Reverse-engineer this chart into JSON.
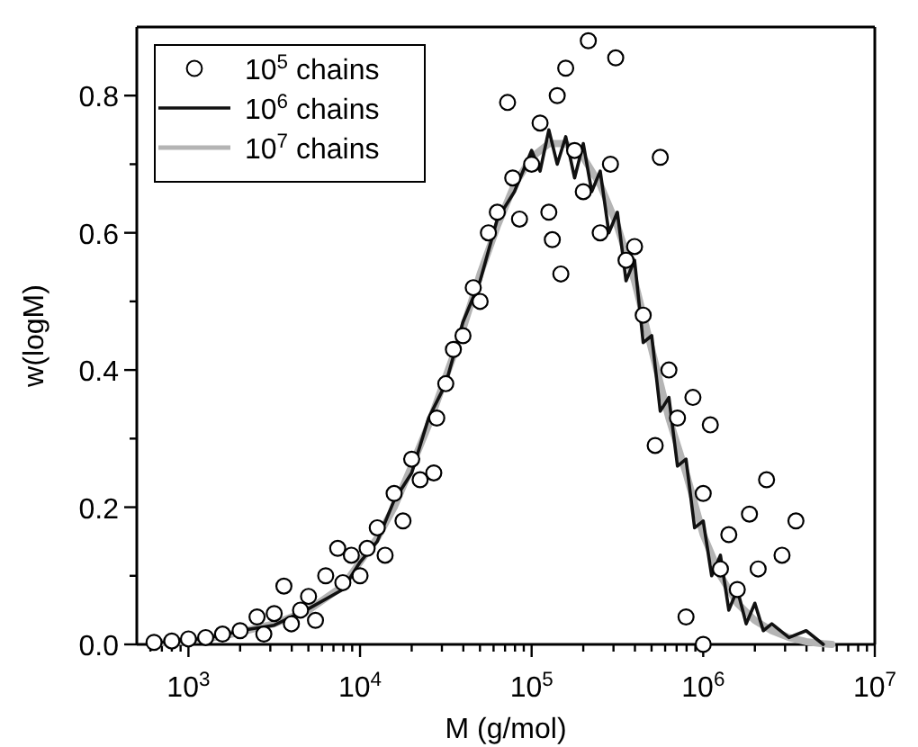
{
  "chart_data": {
    "type": "line",
    "xlabel": "M (g/mol)",
    "ylabel": "w(logM)",
    "log": "x",
    "xlim": [
      500,
      10000000
    ],
    "ylim": [
      0,
      0.9
    ],
    "xticks": [
      {
        "value": 1000,
        "label": "10$^{3}$"
      },
      {
        "value": 10000,
        "label": "10$^{4}$"
      },
      {
        "value": 100000,
        "label": "10$^{5}$"
      },
      {
        "value": 1000000,
        "label": "10$^{6}$"
      },
      {
        "value": 10000000,
        "label": "10$^{7}$"
      },
      {
        "value": 600,
        "label": null
      },
      {
        "value": 700,
        "label": null
      },
      {
        "value": 800,
        "label": null
      },
      {
        "value": 900,
        "label": null
      },
      {
        "value": 2000,
        "label": null
      },
      {
        "value": 3000,
        "label": null
      },
      {
        "value": 4000,
        "label": null
      },
      {
        "value": 5000,
        "label": null
      },
      {
        "value": 6000,
        "label": null
      },
      {
        "value": 7000,
        "label": null
      },
      {
        "value": 8000,
        "label": null
      },
      {
        "value": 9000,
        "label": null
      },
      {
        "value": 20000,
        "label": null
      },
      {
        "value": 30000,
        "label": null
      },
      {
        "value": 40000,
        "label": null
      },
      {
        "value": 50000,
        "label": null
      },
      {
        "value": 60000,
        "label": null
      },
      {
        "value": 70000,
        "label": null
      },
      {
        "value": 80000,
        "label": null
      },
      {
        "value": 90000,
        "label": null
      },
      {
        "value": 200000,
        "label": null
      },
      {
        "value": 300000,
        "label": null
      },
      {
        "value": 400000,
        "label": null
      },
      {
        "value": 500000,
        "label": null
      },
      {
        "value": 600000,
        "label": null
      },
      {
        "value": 700000,
        "label": null
      },
      {
        "value": 800000,
        "label": null
      },
      {
        "value": 900000,
        "label": null
      },
      {
        "value": 2000000,
        "label": null
      },
      {
        "value": 3000000,
        "label": null
      },
      {
        "value": 4000000,
        "label": null
      },
      {
        "value": 5000000,
        "label": null
      },
      {
        "value": 6000000,
        "label": null
      },
      {
        "value": 7000000,
        "label": null
      },
      {
        "value": 8000000,
        "label": null
      },
      {
        "value": 9000000,
        "label": null
      }
    ],
    "yticks": [
      {
        "value": 0,
        "label": "0.0"
      },
      0.2,
      0.4,
      0.6,
      0.8,
      {
        "value": 0.1,
        "label": null
      },
      {
        "value": 0.3,
        "label": null
      },
      {
        "value": 0.5,
        "label": null
      },
      {
        "value": 0.7,
        "label": null
      }
    ],
    "grid": false,
    "legend": "top left",
    "series": [
      {
        "name": "10$^{7}$ chains",
        "color": "#b4b4b4",
        "line_style": "solid",
        "x": [
          600,
          1000,
          1580,
          2000,
          3160,
          5010,
          7940,
          10000,
          12600,
          15800,
          20000,
          25100,
          31600,
          39800,
          50100,
          63100,
          79400,
          100000,
          126000,
          158000,
          200000,
          251000,
          316000,
          398000,
          501000,
          631000,
          794000,
          1000000,
          1260000,
          1580000,
          2000000,
          2510000,
          3160000,
          3980000,
          5010000,
          5620000
        ],
        "values": [
          0.002,
          0.005,
          0.012,
          0.018,
          0.03,
          0.05,
          0.085,
          0.12,
          0.155,
          0.2,
          0.26,
          0.32,
          0.39,
          0.46,
          0.54,
          0.61,
          0.67,
          0.71,
          0.73,
          0.73,
          0.71,
          0.67,
          0.61,
          0.53,
          0.43,
          0.33,
          0.25,
          0.16,
          0.1,
          0.06,
          0.035,
          0.02,
          0.01,
          0.004,
          0.001,
          0
        ]
      },
      {
        "name": "10$^{6}$ chains",
        "color": "#111111",
        "line_style": "solid",
        "x": [
          600,
          1000,
          1580,
          2000,
          3160,
          5010,
          7940,
          10000,
          12600,
          15800,
          20000,
          25100,
          31600,
          39800,
          50100,
          63100,
          79400,
          100000,
          112000,
          126000,
          141000,
          158000,
          178000,
          200000,
          224000,
          251000,
          282000,
          316000,
          355000,
          398000,
          447000,
          501000,
          562000,
          631000,
          708000,
          794000,
          891000,
          1000000,
          1120000,
          1260000,
          1410000,
          1580000,
          1780000,
          2000000,
          2240000,
          2510000,
          3160000,
          3980000,
          5010000
        ],
        "values": [
          0.002,
          0.006,
          0.013,
          0.02,
          0.028,
          0.052,
          0.08,
          0.12,
          0.15,
          0.21,
          0.25,
          0.33,
          0.38,
          0.47,
          0.53,
          0.62,
          0.66,
          0.72,
          0.69,
          0.75,
          0.7,
          0.74,
          0.68,
          0.73,
          0.66,
          0.69,
          0.6,
          0.63,
          0.53,
          0.56,
          0.44,
          0.45,
          0.34,
          0.36,
          0.26,
          0.27,
          0.17,
          0.18,
          0.1,
          0.13,
          0.05,
          0.08,
          0.03,
          0.06,
          0.02,
          0.03,
          0.01,
          0.02,
          0
        ]
      },
      {
        "name": "10$^{5}$ chains",
        "type": "scatter",
        "marker": "circle",
        "color": "#000000",
        "x": [
          630,
          800,
          1000,
          1260,
          1580,
          2000,
          2510,
          2750,
          3160,
          3600,
          3980,
          4500,
          5010,
          5500,
          6310,
          7410,
          7940,
          8900,
          10000,
          11000,
          12600,
          14000,
          15800,
          17800,
          20000,
          22400,
          26900,
          28000,
          31600,
          35000,
          39800,
          45700,
          50100,
          56000,
          63100,
          72400,
          77600,
          85000,
          100000,
          112000,
          126000,
          132000,
          141000,
          148000,
          158000,
          178000,
          200000,
          214000,
          251000,
          288000,
          309000,
          355000,
          398000,
          447000,
          525000,
          562000,
          631000,
          708000,
          794000,
          871000,
          1000000,
          1000000,
          1100000,
          1260000,
          1410000,
          1580000,
          1860000,
          2090000,
          2340000,
          2880000,
          3470000
        ],
        "values": [
          0.003,
          0.005,
          0.008,
          0.01,
          0.015,
          0.02,
          0.04,
          0.015,
          0.045,
          0.085,
          0.03,
          0.05,
          0.07,
          0.035,
          0.1,
          0.14,
          0.09,
          0.13,
          0.1,
          0.14,
          0.17,
          0.13,
          0.22,
          0.18,
          0.27,
          0.24,
          0.25,
          0.33,
          0.38,
          0.43,
          0.45,
          0.52,
          0.5,
          0.6,
          0.63,
          0.79,
          0.68,
          0.62,
          0.7,
          0.76,
          0.63,
          0.59,
          0.8,
          0.54,
          0.84,
          0.72,
          0.66,
          0.88,
          0.6,
          0.7,
          0.855,
          0.56,
          0.58,
          0.48,
          0.29,
          0.71,
          0.4,
          0.33,
          0.04,
          0.36,
          0,
          0.22,
          0.32,
          0.11,
          0.16,
          0.08,
          0.19,
          0.11,
          0.24,
          0.13,
          0.18
        ]
      }
    ]
  }
}
